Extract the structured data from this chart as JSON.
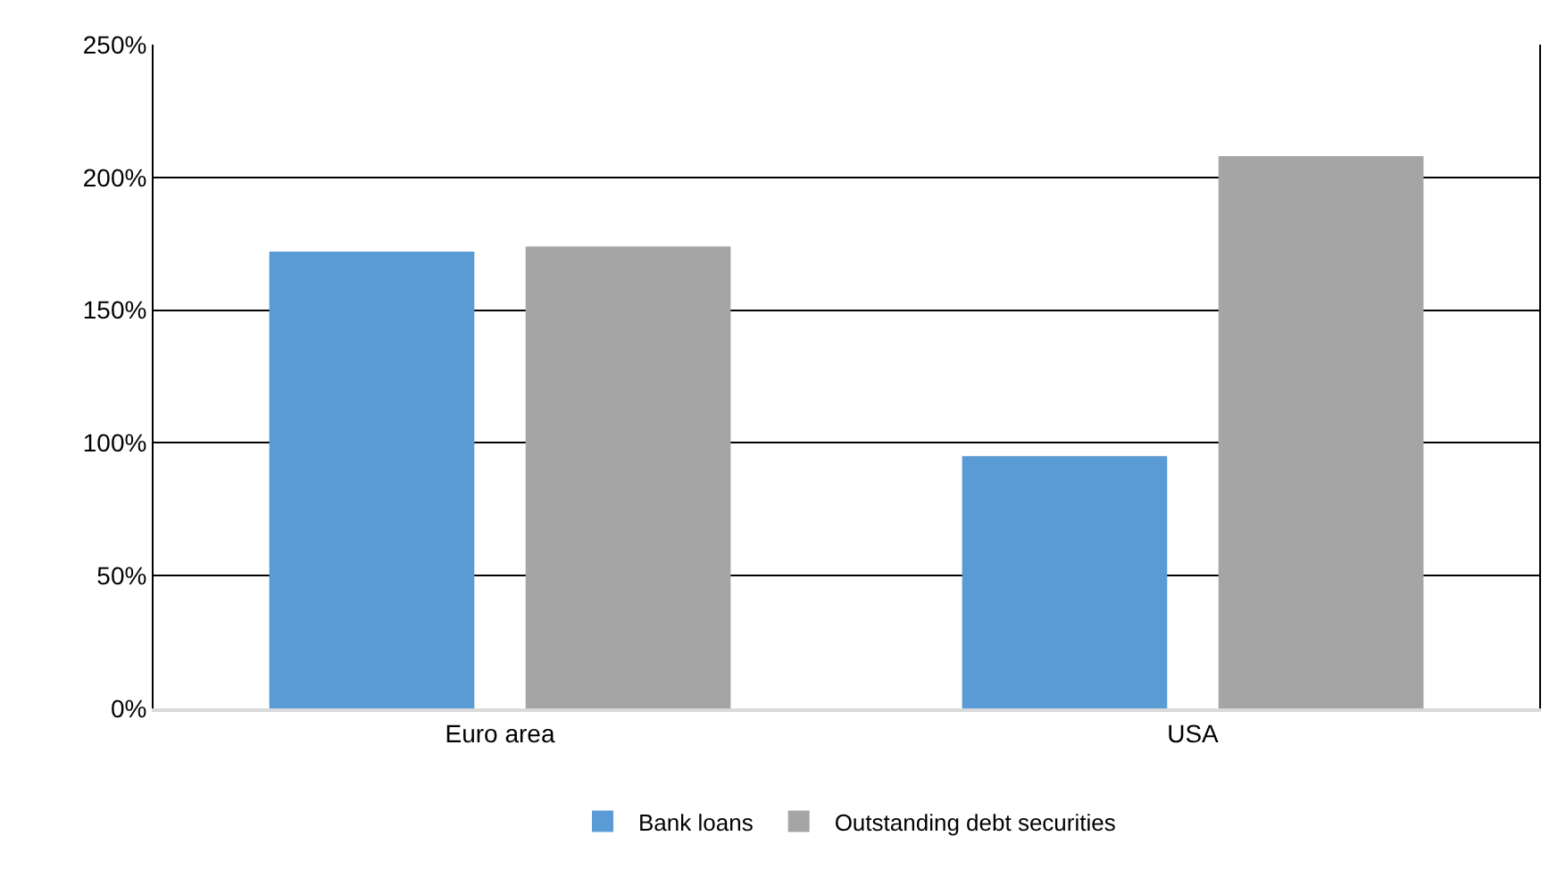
{
  "chart_data": {
    "type": "bar",
    "categories": [
      "Euro area",
      "USA"
    ],
    "series": [
      {
        "name": "Bank loans",
        "color": "#5b9bd5",
        "values": [
          172,
          95
        ]
      },
      {
        "name": "Outstanding debt securities",
        "color": "#a5a5a5",
        "values": [
          174,
          208
        ]
      }
    ],
    "ylim": [
      0,
      250
    ],
    "yticks": [
      {
        "value": 0,
        "label": "0%"
      },
      {
        "value": 50,
        "label": "50%"
      },
      {
        "value": 100,
        "label": "100%"
      },
      {
        "value": 150,
        "label": "150%"
      },
      {
        "value": 200,
        "label": "200%"
      },
      {
        "value": 250,
        "label": "250%"
      }
    ],
    "grid": "y",
    "legend": "bottom"
  }
}
